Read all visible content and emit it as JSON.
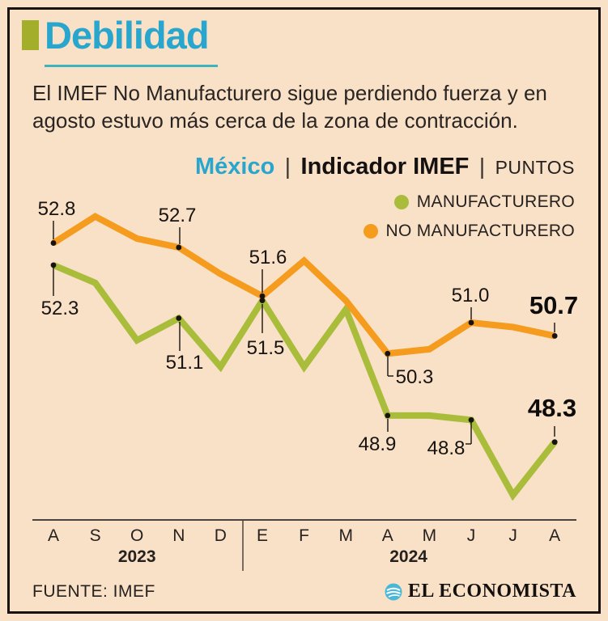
{
  "header": {
    "title": "Debilidad",
    "subtitle_lines": [
      "El IMEF No Manufacturero sigue perdiendo fuerza y en",
      "agosto estuvo más cerca de la zona de contracción."
    ]
  },
  "chart_header": {
    "region": "México",
    "separator": "|",
    "title": "Indicador IMEF",
    "units": "PUNTOS"
  },
  "legend": [
    {
      "label": "MANUFACTURERO",
      "color": "#a9bd3b"
    },
    {
      "label": "NO MANUFACTURERO",
      "color": "#f59b1e"
    }
  ],
  "chart_data": {
    "type": "line",
    "x": [
      "A",
      "S",
      "O",
      "N",
      "D",
      "E",
      "F",
      "M",
      "A",
      "M",
      "J",
      "J",
      "A"
    ],
    "x_groups": [
      {
        "label": "2023",
        "from": 0,
        "to": 4
      },
      {
        "label": "2024",
        "from": 5,
        "to": 12
      }
    ],
    "ylim": [
      46.5,
      53.8
    ],
    "grid": false,
    "series": [
      {
        "name": "MANUFACTURERO",
        "color": "#a9bd3b",
        "values": [
          52.3,
          51.9,
          50.6,
          51.1,
          50.0,
          51.5,
          50.0,
          51.3,
          48.9,
          48.9,
          48.8,
          47.1,
          48.3
        ],
        "labeled_points": [
          {
            "i": 0,
            "text": "52.3",
            "bold": false
          },
          {
            "i": 3,
            "text": "51.1",
            "bold": false
          },
          {
            "i": 5,
            "text": "51.5",
            "bold": false
          },
          {
            "i": 8,
            "text": "48.9",
            "bold": false
          },
          {
            "i": 10,
            "text": "48.8",
            "bold": false
          },
          {
            "i": 12,
            "text": "48.3",
            "bold": true
          }
        ]
      },
      {
        "name": "NO MANUFACTURERO",
        "color": "#f59b1e",
        "values": [
          52.8,
          53.4,
          52.9,
          52.7,
          52.1,
          51.6,
          52.4,
          51.5,
          50.3,
          50.4,
          51.0,
          50.9,
          50.7
        ],
        "labeled_points": [
          {
            "i": 0,
            "text": "52.8",
            "bold": false
          },
          {
            "i": 3,
            "text": "52.7",
            "bold": false
          },
          {
            "i": 5,
            "text": "51.6",
            "bold": false
          },
          {
            "i": 8,
            "text": "50.3",
            "bold": false
          },
          {
            "i": 10,
            "text": "51.0",
            "bold": false
          },
          {
            "i": 12,
            "text": "50.7",
            "bold": true
          }
        ]
      }
    ]
  },
  "footer": {
    "source": "FUENTE: IMEF",
    "brand": "EL ECONOMISTA"
  }
}
